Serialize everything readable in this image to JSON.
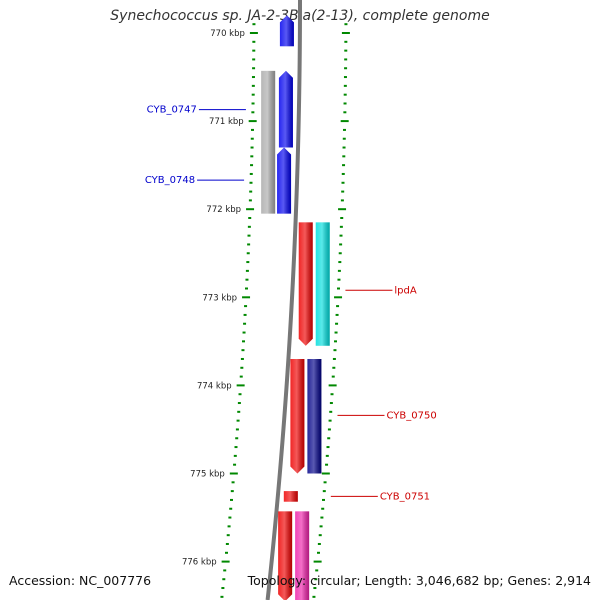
{
  "title": "Synechococcus sp. JA-2-3B'a(2-13), complete genome",
  "accession": "Accession: NC_007776",
  "stats": "Topology: circular; Length: 3,046,682 bp; Genes: 2,914",
  "scale": {
    "unit": "kbp",
    "major_ticks": [
      {
        "kbp": 770,
        "label": "770 kbp"
      },
      {
        "kbp": 771,
        "label": "771 kbp"
      },
      {
        "kbp": 772,
        "label": "772 kbp"
      },
      {
        "kbp": 773,
        "label": "773 kbp"
      },
      {
        "kbp": 774,
        "label": "774 kbp"
      },
      {
        "kbp": 775,
        "label": "775 kbp"
      },
      {
        "kbp": 776,
        "label": "776 kbp"
      }
    ]
  },
  "features": [
    {
      "name": "",
      "strand": "+",
      "start_kbp": 769.8,
      "end_kbp": 770.15,
      "color": "#0000ee",
      "track": "plus-cds"
    },
    {
      "name": "",
      "strand": "+",
      "start_kbp": 770.43,
      "end_kbp": 772.05,
      "color": "#aaaaaa",
      "track": "plus-gene"
    },
    {
      "name": "",
      "strand": "+",
      "start_kbp": 770.43,
      "end_kbp": 771.3,
      "color": "#0000ee",
      "track": "plus-cds"
    },
    {
      "name": "",
      "strand": "+",
      "start_kbp": 771.3,
      "end_kbp": 772.05,
      "color": "#0000ee",
      "track": "plus-cds"
    },
    {
      "name": "",
      "strand": "-",
      "start_kbp": 772.15,
      "end_kbp": 773.55,
      "color": "#ee0000",
      "track": "minus-cds"
    },
    {
      "name": "",
      "strand": "-",
      "start_kbp": 772.15,
      "end_kbp": 773.55,
      "color": "#00dddd",
      "track": "minus-gene"
    },
    {
      "name": "",
      "strand": "-",
      "start_kbp": 773.7,
      "end_kbp": 775.0,
      "color": "#ee0000",
      "track": "minus-cds"
    },
    {
      "name": "",
      "strand": "-",
      "start_kbp": 773.7,
      "end_kbp": 775.0,
      "color": "#000088",
      "track": "minus-gene"
    },
    {
      "name": "",
      "strand": "-",
      "start_kbp": 775.2,
      "end_kbp": 775.32,
      "color": "#ee0000",
      "track": "minus-cds"
    },
    {
      "name": "",
      "strand": "-",
      "start_kbp": 775.43,
      "end_kbp": 776.45,
      "color": "#ee0000",
      "track": "minus-cds"
    },
    {
      "name": "",
      "strand": "-",
      "start_kbp": 775.43,
      "end_kbp": 776.45,
      "color": "#ee22aa",
      "track": "minus-gene"
    }
  ],
  "labels": [
    {
      "text": "CYB_0747",
      "side": "left",
      "kbp": 770.87,
      "color": "#0000cc"
    },
    {
      "text": "CYB_0748",
      "side": "left",
      "kbp": 771.67,
      "color": "#0000cc"
    },
    {
      "text": "lpdA",
      "side": "right",
      "kbp": 772.92,
      "color": "#cc0000"
    },
    {
      "text": "CYB_0750",
      "side": "right",
      "kbp": 774.34,
      "color": "#cc0000"
    },
    {
      "text": "CYB_0751",
      "side": "right",
      "kbp": 775.26,
      "color": "#cc0000"
    }
  ],
  "colors": {
    "backbone": "#777777",
    "ticks": "#008800",
    "plus_strand_label": "#0000cc",
    "minus_strand_label": "#cc0000"
  }
}
